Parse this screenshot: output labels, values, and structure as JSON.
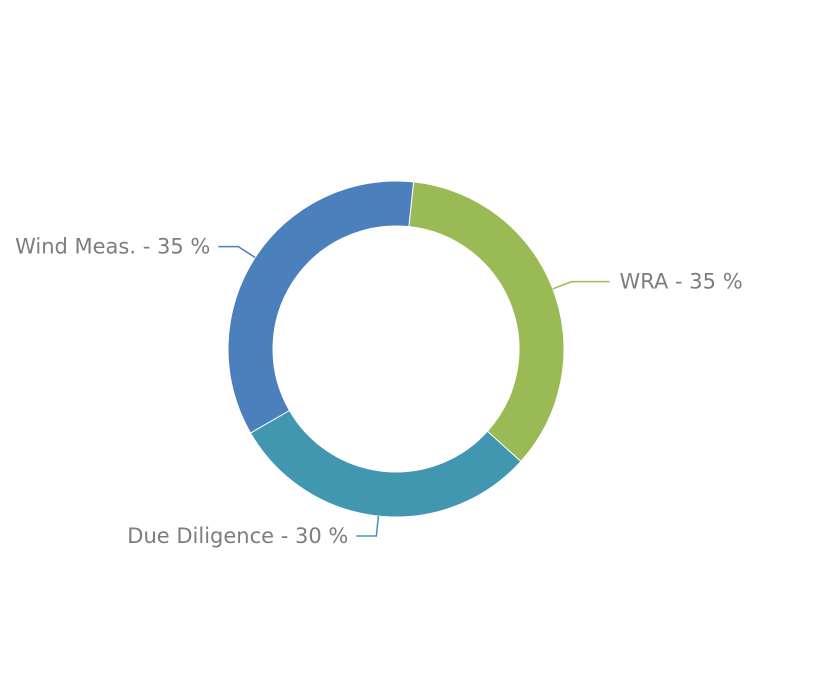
{
  "chart_data": {
    "type": "pie",
    "variant": "donut",
    "title": "",
    "categories": [
      "WRA",
      "Due Diligence",
      "Wind Meas."
    ],
    "values": [
      35,
      30,
      35
    ],
    "unit": "%",
    "labels": [
      "WRA - 35 %",
      "Due Diligence - 30 %",
      "Wind Meas. - 35 %"
    ],
    "colors": [
      "#9aba56",
      "#4197b0",
      "#4b80bd"
    ],
    "label_color": "#7d7d7d",
    "legend": "none"
  }
}
